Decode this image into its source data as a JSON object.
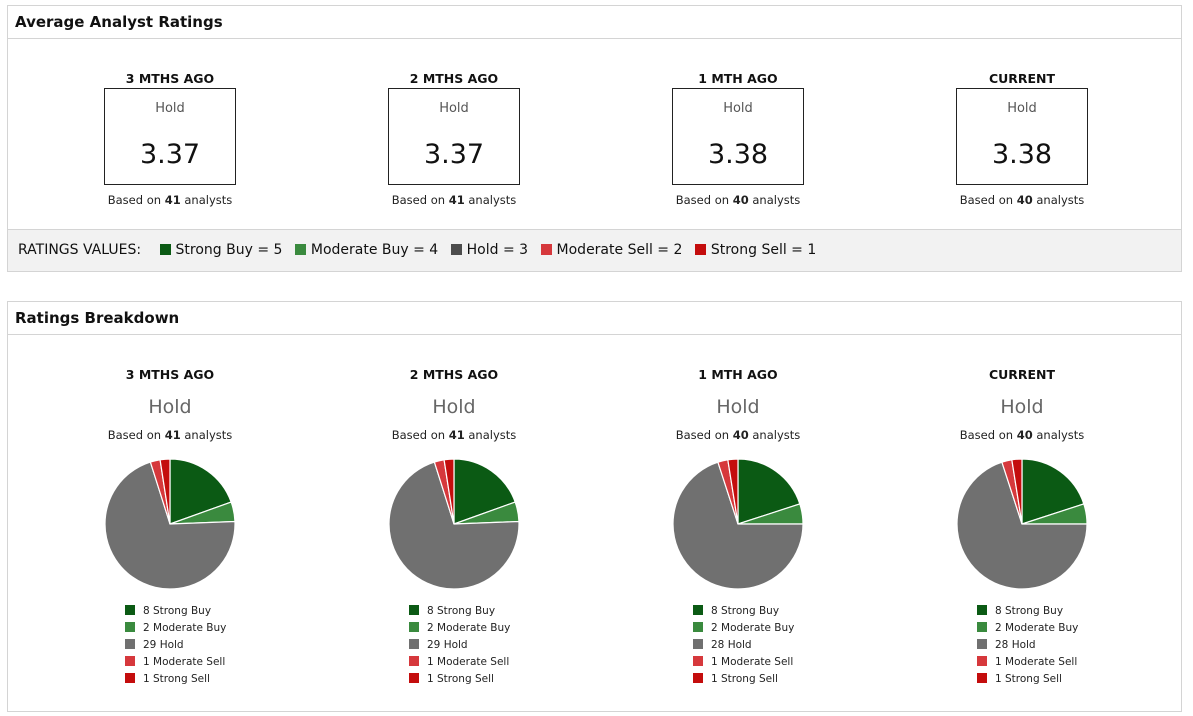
{
  "avg": {
    "title": "Average Analyst Ratings",
    "columns": [
      {
        "period": "3 MTHS AGO",
        "word": "Hold",
        "value": "3.37",
        "based_prefix": "Based on ",
        "count": "41",
        "based_suffix": " analysts"
      },
      {
        "period": "2 MTHS AGO",
        "word": "Hold",
        "value": "3.37",
        "based_prefix": "Based on ",
        "count": "41",
        "based_suffix": " analysts"
      },
      {
        "period": "1 MTH AGO",
        "word": "Hold",
        "value": "3.38",
        "based_prefix": "Based on ",
        "count": "40",
        "based_suffix": " analysts"
      },
      {
        "period": "CURRENT",
        "word": "Hold",
        "value": "3.38",
        "based_prefix": "Based on ",
        "count": "40",
        "based_suffix": " analysts"
      }
    ],
    "ratings_values_label": "RATINGS VALUES:",
    "ratings_values": [
      {
        "label": "Strong Buy = 5",
        "color": "#0b5a14"
      },
      {
        "label": "Moderate Buy = 4",
        "color": "#3a8a3e"
      },
      {
        "label": "Hold = 3",
        "color": "#4d4d4d"
      },
      {
        "label": "Moderate Sell = 2",
        "color": "#d6383c"
      },
      {
        "label": "Strong Sell = 1",
        "color": "#c40d0d"
      }
    ]
  },
  "breakdown": {
    "title": "Ratings Breakdown",
    "columns": [
      {
        "period": "3 MTHS AGO",
        "word": "Hold",
        "based_prefix": "Based on ",
        "count": "41",
        "based_suffix": " analysts"
      },
      {
        "period": "2 MTHS AGO",
        "word": "Hold",
        "based_prefix": "Based on ",
        "count": "41",
        "based_suffix": " analysts"
      },
      {
        "period": "1 MTH AGO",
        "word": "Hold",
        "based_prefix": "Based on ",
        "count": "40",
        "based_suffix": " analysts"
      },
      {
        "period": "CURRENT",
        "word": "Hold",
        "based_prefix": "Based on ",
        "count": "40",
        "based_suffix": " analysts"
      }
    ]
  },
  "chart_data": [
    {
      "type": "pie",
      "title": "3 MTHS AGO",
      "categories": [
        "Strong Buy",
        "Moderate Buy",
        "Hold",
        "Moderate Sell",
        "Strong Sell"
      ],
      "values": [
        8,
        2,
        29,
        1,
        1
      ],
      "colors": [
        "#0b5a14",
        "#3a8a3e",
        "#707070",
        "#d6383c",
        "#c40d0d"
      ],
      "legend": [
        "8 Strong Buy",
        "2 Moderate Buy",
        "29 Hold",
        "1 Moderate Sell",
        "1 Strong Sell"
      ]
    },
    {
      "type": "pie",
      "title": "2 MTHS AGO",
      "categories": [
        "Strong Buy",
        "Moderate Buy",
        "Hold",
        "Moderate Sell",
        "Strong Sell"
      ],
      "values": [
        8,
        2,
        29,
        1,
        1
      ],
      "colors": [
        "#0b5a14",
        "#3a8a3e",
        "#707070",
        "#d6383c",
        "#c40d0d"
      ],
      "legend": [
        "8 Strong Buy",
        "2 Moderate Buy",
        "29 Hold",
        "1 Moderate Sell",
        "1 Strong Sell"
      ]
    },
    {
      "type": "pie",
      "title": "1 MTH AGO",
      "categories": [
        "Strong Buy",
        "Moderate Buy",
        "Hold",
        "Moderate Sell",
        "Strong Sell"
      ],
      "values": [
        8,
        2,
        28,
        1,
        1
      ],
      "colors": [
        "#0b5a14",
        "#3a8a3e",
        "#707070",
        "#d6383c",
        "#c40d0d"
      ],
      "legend": [
        "8 Strong Buy",
        "2 Moderate Buy",
        "28 Hold",
        "1 Moderate Sell",
        "1 Strong Sell"
      ]
    },
    {
      "type": "pie",
      "title": "CURRENT",
      "categories": [
        "Strong Buy",
        "Moderate Buy",
        "Hold",
        "Moderate Sell",
        "Strong Sell"
      ],
      "values": [
        8,
        2,
        28,
        1,
        1
      ],
      "colors": [
        "#0b5a14",
        "#3a8a3e",
        "#707070",
        "#d6383c",
        "#c40d0d"
      ],
      "legend": [
        "8 Strong Buy",
        "2 Moderate Buy",
        "28 Hold",
        "1 Moderate Sell",
        "1 Strong Sell"
      ]
    }
  ]
}
